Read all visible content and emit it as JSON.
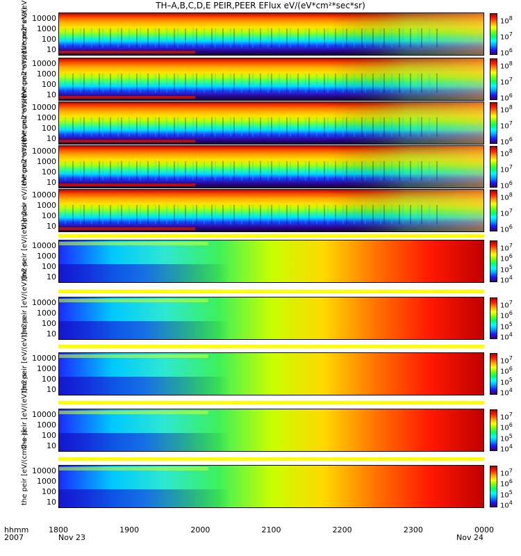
{
  "title": "TH–A,B,C,D,E PEIR,PEER EFlux eV/(eV*cm²*sec*sr)",
  "x_axis": {
    "label_top": "hhmm",
    "label_bottom": "2007",
    "ticks": [
      "1800",
      "1900",
      "2000",
      "2100",
      "2200",
      "2300",
      "0000"
    ],
    "subticks": {
      "first": "Nov 23",
      "last": "Nov 24"
    }
  },
  "chart_data": [
    {
      "type": "heatmap",
      "panel": "tha_peir",
      "ylabel": "the peir eV/(eV*cm2*s*sr)",
      "yscale": "log",
      "yticks": [
        "10000",
        "1000",
        "100",
        "10"
      ],
      "colorbar_ticks": [
        "10^8",
        "10^7",
        "10^6"
      ],
      "colorscale": "rainbow"
    },
    {
      "type": "heatmap",
      "panel": "thb_peir",
      "ylabel": "the peir eV/(eV*cm2*s*sr)",
      "yscale": "log",
      "yticks": [
        "10000",
        "1000",
        "100",
        "10"
      ],
      "colorbar_ticks": [
        "10^8",
        "10^7",
        "10^6"
      ],
      "colorscale": "rainbow"
    },
    {
      "type": "heatmap",
      "panel": "thc_peir",
      "ylabel": "the peir eV/(eV*cm2*s*sr)",
      "yscale": "log",
      "yticks": [
        "10000",
        "1000",
        "100",
        "10"
      ],
      "colorbar_ticks": [
        "10^8",
        "10^7",
        "10^6"
      ],
      "colorscale": "rainbow"
    },
    {
      "type": "heatmap",
      "panel": "thd_peir",
      "ylabel": "the peir eV/(eV*cm2*s*sr)",
      "yscale": "log",
      "yticks": [
        "10000",
        "1000",
        "100",
        "10"
      ],
      "colorbar_ticks": [
        "10^8",
        "10^7",
        "10^6"
      ],
      "colorscale": "rainbow"
    },
    {
      "type": "heatmap",
      "panel": "the_peir",
      "ylabel": "the peir eV/(eV*cm2*s*sr)",
      "yscale": "log",
      "yticks": [
        "10000",
        "1000",
        "100",
        "10"
      ],
      "colorbar_ticks": [
        "10^8",
        "10^7",
        "10^6"
      ],
      "colorscale": "rainbow"
    },
    {
      "type": "heatmap",
      "panel": "tha_peer",
      "ylabel": "the peir [eV/(eV)]n2-s-",
      "yscale": "log",
      "yticks": [
        "10000",
        "1000",
        "100",
        "10"
      ],
      "colorbar_ticks": [
        "10^7",
        "10^6",
        "10^5",
        "10^4"
      ],
      "colorscale": "rainbow"
    },
    {
      "type": "heatmap",
      "panel": "thb_peer",
      "ylabel": "the peir [eV/(eV)]n2-s-",
      "yscale": "log",
      "yticks": [
        "10000",
        "1000",
        "100",
        "10"
      ],
      "colorbar_ticks": [
        "10^7",
        "10^6",
        "10^5",
        "10^4"
      ],
      "colorscale": "rainbow"
    },
    {
      "type": "heatmap",
      "panel": "thc_peer",
      "ylabel": "the peir [eV/(eV)]n2-s-",
      "yscale": "log",
      "yticks": [
        "10000",
        "1000",
        "100",
        "10"
      ],
      "colorbar_ticks": [
        "10^7",
        "10^6",
        "10^5",
        "10^4"
      ],
      "colorscale": "rainbow"
    },
    {
      "type": "heatmap",
      "panel": "thd_peer",
      "ylabel": "the peir [eV/(eV)]n2-s-",
      "yscale": "log",
      "yticks": [
        "10000",
        "1000",
        "100",
        "10"
      ],
      "colorbar_ticks": [
        "10^7",
        "10^6",
        "10^5",
        "10^4"
      ],
      "colorscale": "rainbow"
    },
    {
      "type": "heatmap",
      "panel": "the_peer",
      "ylabel": "the peir [eV/(cm2-s-)]",
      "yscale": "log",
      "yticks": [
        "10000",
        "1000",
        "100",
        "10"
      ],
      "colorbar_ticks": [
        "10^7",
        "10^6",
        "10^5",
        "10^4"
      ],
      "colorscale": "rainbow"
    }
  ]
}
